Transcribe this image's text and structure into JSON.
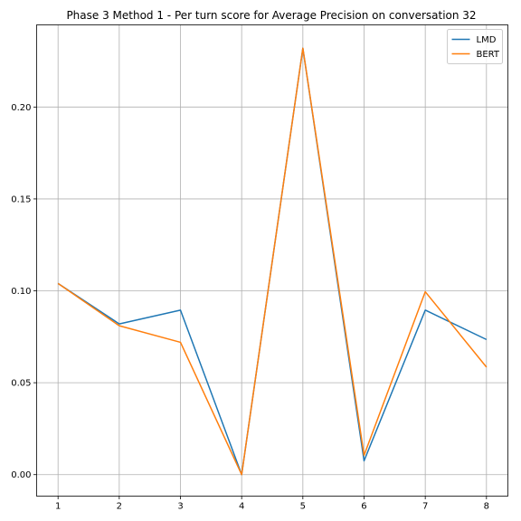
{
  "chart_data": {
    "type": "line",
    "title": "Phase 3 Method 1 - Per turn score for Average Precision on conversation 32",
    "xlabel": "",
    "ylabel": "",
    "x": [
      1,
      2,
      3,
      4,
      5,
      6,
      7,
      8
    ],
    "x_ticks": [
      "1",
      "2",
      "3",
      "4",
      "5",
      "6",
      "7",
      "8"
    ],
    "y_ticks": [
      "0.00",
      "0.05",
      "0.10",
      "0.15",
      "0.20"
    ],
    "xlim": [
      0.65,
      8.35
    ],
    "ylim": [
      -0.0117,
      0.2447
    ],
    "grid": true,
    "legend_position": "top-right",
    "series": [
      {
        "name": "LMD",
        "color": "#1f77b4",
        "values": [
          0.104,
          0.082,
          0.0895,
          0.0,
          0.232,
          0.0075,
          0.0895,
          0.0735
        ]
      },
      {
        "name": "BERT",
        "color": "#ff7f0e",
        "values": [
          0.104,
          0.081,
          0.072,
          0.0,
          0.232,
          0.0105,
          0.0995,
          0.0585
        ]
      }
    ]
  }
}
